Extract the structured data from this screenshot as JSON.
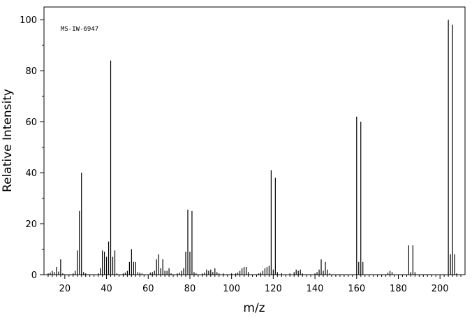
{
  "chart_data": {
    "type": "bar",
    "subtype": "mass-spectrum-stick",
    "annotation": "MS-IW-6947",
    "xlabel": "m/z",
    "ylabel": "Relative Intensity",
    "xlim": [
      10,
      212
    ],
    "ylim": [
      0,
      105
    ],
    "x_ticks": [
      20,
      40,
      60,
      80,
      100,
      120,
      140,
      160,
      180,
      200
    ],
    "y_ticks": [
      0,
      20,
      40,
      60,
      80,
      100
    ],
    "grid": false,
    "bar_color": "#000000",
    "peaks": [
      {
        "mz": 12,
        "intensity": 0.5
      },
      {
        "mz": 13,
        "intensity": 0.8
      },
      {
        "mz": 14,
        "intensity": 1.5
      },
      {
        "mz": 15,
        "intensity": 1.0
      },
      {
        "mz": 16,
        "intensity": 3.0
      },
      {
        "mz": 17,
        "intensity": 1.2
      },
      {
        "mz": 18,
        "intensity": 6.0
      },
      {
        "mz": 19,
        "intensity": 0.5
      },
      {
        "mz": 24,
        "intensity": 0.5
      },
      {
        "mz": 25,
        "intensity": 1.5
      },
      {
        "mz": 26,
        "intensity": 9.5
      },
      {
        "mz": 27,
        "intensity": 25.0
      },
      {
        "mz": 28,
        "intensity": 40.0
      },
      {
        "mz": 29,
        "intensity": 1.0
      },
      {
        "mz": 30,
        "intensity": 0.5
      },
      {
        "mz": 36,
        "intensity": 0.5
      },
      {
        "mz": 37,
        "intensity": 2.5
      },
      {
        "mz": 38,
        "intensity": 9.5
      },
      {
        "mz": 39,
        "intensity": 9.0
      },
      {
        "mz": 40,
        "intensity": 7.0
      },
      {
        "mz": 41,
        "intensity": 13.0
      },
      {
        "mz": 42,
        "intensity": 84.0
      },
      {
        "mz": 43,
        "intensity": 7.0
      },
      {
        "mz": 44,
        "intensity": 9.5
      },
      {
        "mz": 45,
        "intensity": 0.5
      },
      {
        "mz": 48,
        "intensity": 0.5
      },
      {
        "mz": 49,
        "intensity": 0.8
      },
      {
        "mz": 50,
        "intensity": 1.5
      },
      {
        "mz": 51,
        "intensity": 5.0
      },
      {
        "mz": 52,
        "intensity": 10.0
      },
      {
        "mz": 53,
        "intensity": 5.0
      },
      {
        "mz": 54,
        "intensity": 5.0
      },
      {
        "mz": 55,
        "intensity": 1.0
      },
      {
        "mz": 56,
        "intensity": 0.8
      },
      {
        "mz": 57,
        "intensity": 0.5
      },
      {
        "mz": 61,
        "intensity": 0.8
      },
      {
        "mz": 62,
        "intensity": 1.0
      },
      {
        "mz": 63,
        "intensity": 1.5
      },
      {
        "mz": 64,
        "intensity": 6.0
      },
      {
        "mz": 65,
        "intensity": 8.0
      },
      {
        "mz": 66,
        "intensity": 2.5
      },
      {
        "mz": 67,
        "intensity": 6.0
      },
      {
        "mz": 68,
        "intensity": 1.5
      },
      {
        "mz": 69,
        "intensity": 1.5
      },
      {
        "mz": 70,
        "intensity": 2.5
      },
      {
        "mz": 71,
        "intensity": 0.5
      },
      {
        "mz": 74,
        "intensity": 0.5
      },
      {
        "mz": 75,
        "intensity": 0.8
      },
      {
        "mz": 76,
        "intensity": 1.5
      },
      {
        "mz": 77,
        "intensity": 2.5
      },
      {
        "mz": 78,
        "intensity": 9.0
      },
      {
        "mz": 79,
        "intensity": 25.5
      },
      {
        "mz": 80,
        "intensity": 9.0
      },
      {
        "mz": 81,
        "intensity": 25.0
      },
      {
        "mz": 82,
        "intensity": 1.0
      },
      {
        "mz": 83,
        "intensity": 0.5
      },
      {
        "mz": 86,
        "intensity": 0.5
      },
      {
        "mz": 87,
        "intensity": 0.8
      },
      {
        "mz": 88,
        "intensity": 2.0
      },
      {
        "mz": 89,
        "intensity": 1.5
      },
      {
        "mz": 90,
        "intensity": 2.0
      },
      {
        "mz": 91,
        "intensity": 1.0
      },
      {
        "mz": 92,
        "intensity": 2.5
      },
      {
        "mz": 93,
        "intensity": 1.0
      },
      {
        "mz": 94,
        "intensity": 0.5
      },
      {
        "mz": 96,
        "intensity": 0.5
      },
      {
        "mz": 100,
        "intensity": 0.5
      },
      {
        "mz": 102,
        "intensity": 0.5
      },
      {
        "mz": 103,
        "intensity": 0.8
      },
      {
        "mz": 104,
        "intensity": 1.5
      },
      {
        "mz": 105,
        "intensity": 2.5
      },
      {
        "mz": 106,
        "intensity": 3.0
      },
      {
        "mz": 107,
        "intensity": 3.0
      },
      {
        "mz": 108,
        "intensity": 1.0
      },
      {
        "mz": 113,
        "intensity": 0.5
      },
      {
        "mz": 114,
        "intensity": 0.8
      },
      {
        "mz": 115,
        "intensity": 1.5
      },
      {
        "mz": 116,
        "intensity": 2.5
      },
      {
        "mz": 117,
        "intensity": 3.0
      },
      {
        "mz": 118,
        "intensity": 3.5
      },
      {
        "mz": 119,
        "intensity": 41.0
      },
      {
        "mz": 120,
        "intensity": 2.0
      },
      {
        "mz": 121,
        "intensity": 38.0
      },
      {
        "mz": 122,
        "intensity": 1.0
      },
      {
        "mz": 124,
        "intensity": 0.5
      },
      {
        "mz": 128,
        "intensity": 0.5
      },
      {
        "mz": 130,
        "intensity": 1.0
      },
      {
        "mz": 131,
        "intensity": 2.0
      },
      {
        "mz": 132,
        "intensity": 1.5
      },
      {
        "mz": 133,
        "intensity": 2.0
      },
      {
        "mz": 134,
        "intensity": 0.5
      },
      {
        "mz": 140,
        "intensity": 0.5
      },
      {
        "mz": 141,
        "intensity": 1.0
      },
      {
        "mz": 142,
        "intensity": 2.0
      },
      {
        "mz": 143,
        "intensity": 6.0
      },
      {
        "mz": 144,
        "intensity": 1.5
      },
      {
        "mz": 145,
        "intensity": 5.0
      },
      {
        "mz": 146,
        "intensity": 2.0
      },
      {
        "mz": 147,
        "intensity": 0.5
      },
      {
        "mz": 160,
        "intensity": 62.0
      },
      {
        "mz": 161,
        "intensity": 5.0
      },
      {
        "mz": 162,
        "intensity": 60.0
      },
      {
        "mz": 163,
        "intensity": 5.0
      },
      {
        "mz": 175,
        "intensity": 0.8
      },
      {
        "mz": 176,
        "intensity": 1.5
      },
      {
        "mz": 177,
        "intensity": 1.0
      },
      {
        "mz": 185,
        "intensity": 11.5
      },
      {
        "mz": 186,
        "intensity": 1.0
      },
      {
        "mz": 187,
        "intensity": 11.5
      },
      {
        "mz": 188,
        "intensity": 1.0
      },
      {
        "mz": 204,
        "intensity": 100.0
      },
      {
        "mz": 205,
        "intensity": 8.0
      },
      {
        "mz": 206,
        "intensity": 98.0
      },
      {
        "mz": 207,
        "intensity": 8.0
      },
      {
        "mz": 208,
        "intensity": 0.5
      }
    ]
  }
}
